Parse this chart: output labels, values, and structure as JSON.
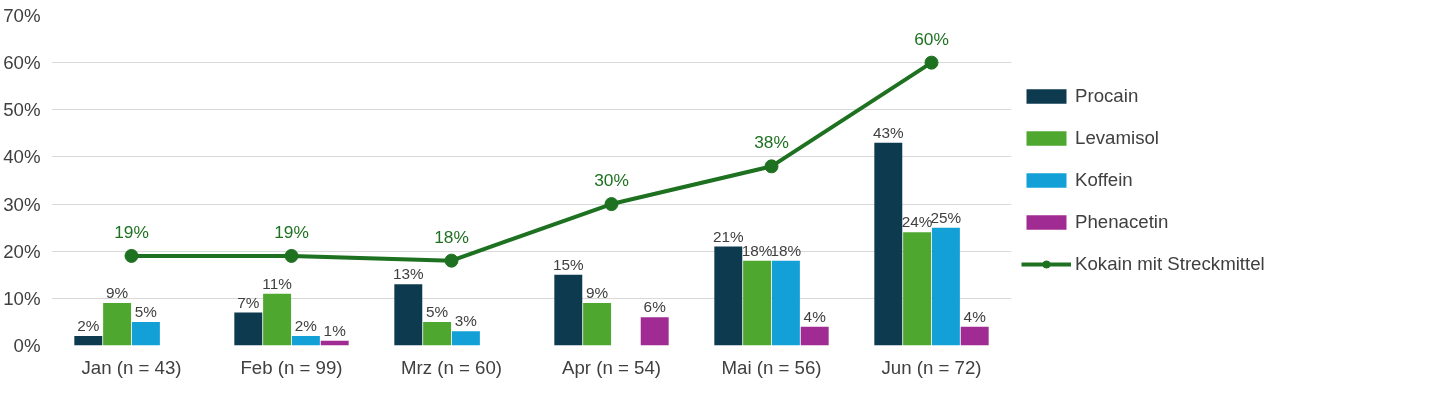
{
  "chart_data": {
    "type": "bar",
    "categories": [
      "Jan (n = 43)",
      "Feb (n = 99)",
      "Mrz (n = 60)",
      "Apr (n = 54)",
      "Mai (n = 56)",
      "Jun (n = 72)"
    ],
    "series": [
      {
        "name": "Procain",
        "color": "#0e3a50",
        "values": [
          2,
          7,
          13,
          15,
          21,
          43
        ],
        "value_labels": [
          "2%",
          "7%",
          "13%",
          "15%",
          "21%",
          "43%"
        ]
      },
      {
        "name": "Levamisol",
        "color": "#4ea72e",
        "values": [
          9,
          11,
          5,
          9,
          18,
          24
        ],
        "value_labels": [
          "9%",
          "11%",
          "5%",
          "9%",
          "18%",
          "24%"
        ]
      },
      {
        "name": "Koffein",
        "color": "#12a0d7",
        "values": [
          5,
          2,
          3,
          null,
          18,
          25
        ],
        "value_labels": [
          "5%",
          "2%",
          "3%",
          null,
          "18%",
          "25%"
        ]
      },
      {
        "name": "Phenacetin",
        "color": "#a02b93",
        "values": [
          null,
          1,
          null,
          6,
          4,
          4
        ],
        "value_labels": [
          null,
          "1%",
          null,
          "6%",
          "4%",
          "4%"
        ]
      },
      {
        "name": "Kokain mit Streckmittel",
        "type": "line",
        "color": "#1e7120",
        "marker": "circle",
        "values": [
          19,
          19,
          18,
          30,
          38,
          60
        ],
        "value_labels": [
          "19%",
          "19%",
          "18%",
          "30%",
          "38%",
          "60%"
        ]
      }
    ],
    "ylim": [
      0,
      70
    ],
    "yticks": [
      {
        "value": 0,
        "label": "0%"
      },
      {
        "value": 10,
        "label": "10%"
      },
      {
        "value": 20,
        "label": "20%"
      },
      {
        "value": 30,
        "label": "30%"
      },
      {
        "value": 40,
        "label": "40%"
      },
      {
        "value": 50,
        "label": "50%"
      },
      {
        "value": 60,
        "label": "60%"
      },
      {
        "value": 70,
        "label": "70%"
      }
    ],
    "grid": "y",
    "legend": "right"
  }
}
